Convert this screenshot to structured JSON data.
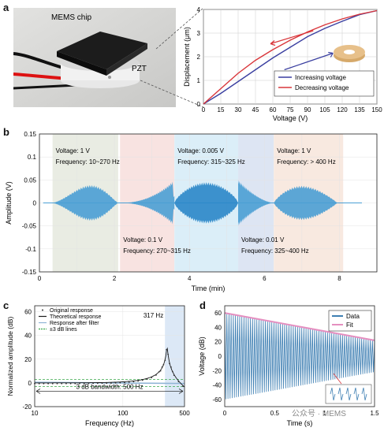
{
  "panels": {
    "a": {
      "letter": "a",
      "photo": {
        "chip_label": "MEMS chip",
        "pzt_label": "PZT"
      },
      "chart_data": {
        "type": "line",
        "xlabel": "Voltage (V)",
        "ylabel": "Displacement (μm)",
        "xlim": [
          0,
          150
        ],
        "ylim": [
          0,
          4
        ],
        "xticks": [
          "0",
          "15",
          "30",
          "45",
          "60",
          "75",
          "90",
          "105",
          "120",
          "135",
          "150"
        ],
        "yticks": [
          "0",
          "1",
          "2",
          "3",
          "4"
        ],
        "grid": true,
        "legend_position": "lower-right",
        "series": [
          {
            "name": "Increasing voltage",
            "color": "#3a3fa0",
            "x": [
              0,
              15,
              30,
              45,
              60,
              75,
              90,
              105,
              120,
              135,
              150
            ],
            "y": [
              0,
              0.45,
              0.95,
              1.45,
              1.95,
              2.4,
              2.85,
              3.2,
              3.5,
              3.78,
              3.95
            ]
          },
          {
            "name": "Decreasing voltage",
            "color": "#d9363b",
            "x": [
              0,
              15,
              30,
              45,
              60,
              75,
              90,
              105,
              120,
              135,
              150
            ],
            "y": [
              0,
              0.65,
              1.3,
              1.85,
              2.3,
              2.7,
              3.05,
              3.35,
              3.6,
              3.8,
              3.95
            ]
          }
        ]
      }
    },
    "b": {
      "letter": "b",
      "chart_data": {
        "type": "area",
        "xlabel": "Time (min)",
        "ylabel": "Amplitude (V)",
        "xlim": [
          0,
          9
        ],
        "ylim": [
          -0.15,
          0.15
        ],
        "xticks": [
          "0",
          "2",
          "4",
          "6",
          "8"
        ],
        "yticks": [
          "0.15",
          "0.1",
          "0.05",
          "0",
          "-0.05",
          "-0.1",
          "-0.15"
        ],
        "grid": true,
        "segments": [
          {
            "voltage": "Voltage: 1 V",
            "frequency": "Frequency: 10~270 Hz",
            "t_start": 0.35,
            "t_end": 2.1,
            "peak": 0.057,
            "bg": "#e9ece3",
            "color": "#4a9fd4",
            "label_at": "top"
          },
          {
            "voltage": "Voltage: 0.1 V",
            "frequency": "Frequency: 270~315 Hz",
            "t_start": 2.15,
            "t_end": 3.6,
            "peak": 0.05,
            "bg": "#f8e3e1",
            "color": "#4a9fd4",
            "label_at": "bottom"
          },
          {
            "voltage": "Voltage: 0.005 V",
            "frequency": "Frequency: 315~325 Hz",
            "t_start": 3.6,
            "t_end": 5.3,
            "peak": 0.045,
            "bg": "#dbeef8",
            "color": "#2a86c8",
            "label_at": "top"
          },
          {
            "voltage": "Voltage: 0.01 V",
            "frequency": "Frequency: 325~400 Hz",
            "t_start": 5.3,
            "t_end": 6.25,
            "peak": 0.05,
            "bg": "#dde5f3",
            "color": "#4a9fd4",
            "label_at": "bottom"
          },
          {
            "voltage": "Voltage: 1 V",
            "frequency": "Frequency: > 400 Hz",
            "t_start": 6.25,
            "t_end": 8.1,
            "peak": 0.045,
            "bg": "#f8e9e0",
            "color": "#4a9fd4",
            "label_at": "top"
          }
        ]
      }
    },
    "c": {
      "letter": "c",
      "chart_data": {
        "type": "line",
        "xlabel": "Frequency (Hz)",
        "ylabel": "Normalized amplitude (dB)",
        "xscale": "log",
        "xlim": [
          10,
          500
        ],
        "ylim": [
          -20,
          65
        ],
        "xticks": [
          "10",
          "100",
          "500"
        ],
        "yticks": [
          "60",
          "40",
          "20",
          "0",
          "-20"
        ],
        "grid": true,
        "legend_position": "top-left",
        "annotations": {
          "peak": "317 Hz",
          "bandwidth": "3 dB bandwidth: 500 Hz"
        },
        "series": [
          {
            "name": "Original response",
            "color": "#333333"
          },
          {
            "name": "Theoretical response",
            "color": "#1a1a1a"
          },
          {
            "name": "Response after filter",
            "color": "#8fb4d6"
          },
          {
            "name": "±3 dB lines",
            "color": "#3aa84a"
          }
        ]
      }
    },
    "d": {
      "letter": "d",
      "chart_data": {
        "type": "line",
        "xlabel": "Time (s)",
        "ylabel": "Voltage (dB)",
        "xlim": [
          0,
          1.5
        ],
        "ylim": [
          -70,
          70
        ],
        "xticks": [
          "0",
          "0.5",
          "1",
          "1.5"
        ],
        "yticks": [
          "60",
          "40",
          "20",
          "0",
          "-20",
          "-40",
          "-60"
        ],
        "grid": false,
        "legend_position": "top-right",
        "series": [
          {
            "name": "Data",
            "color": "#3e7fb3"
          },
          {
            "name": "Fit",
            "color": "#e58fc0",
            "x": [
              0,
              1.5
            ],
            "y": [
              60,
              22
            ]
          }
        ]
      }
    }
  },
  "watermark": "公众号 · MEMS"
}
